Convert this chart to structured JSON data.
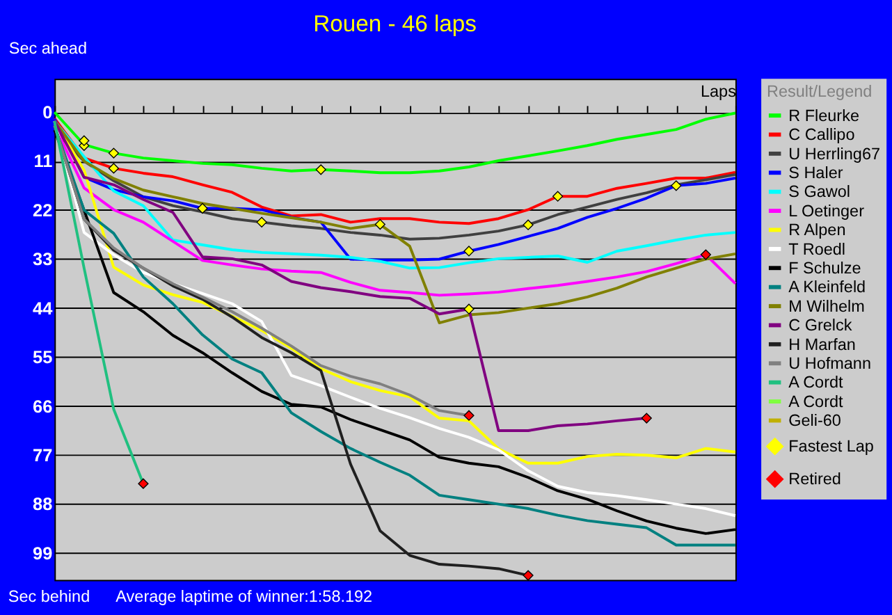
{
  "chart_data": {
    "type": "line",
    "title": "Rouen - 46 laps",
    "ylabel": "Sec ahead",
    "xlabel": "Laps",
    "legend_title": "Result/Legend",
    "annotations": [
      "Sec behind",
      "Average laptime of winner:1:58.192"
    ],
    "categories": [
      null,
      null,
      null,
      null,
      null,
      null,
      null,
      null,
      null,
      null,
      null,
      null,
      null,
      null,
      null,
      null,
      null,
      null,
      null,
      null,
      null,
      null,
      null,
      null
    ],
    "ylim": [
      105,
      -7.5
    ],
    "yticks": [
      0,
      11,
      22,
      33,
      44,
      55,
      66,
      77,
      88,
      99
    ],
    "grid": "y",
    "legend": "right",
    "series": [
      {
        "name": "R Fleurke",
        "color": "#00ff00",
        "values": [
          0,
          7.3,
          9.2,
          10.3,
          10.9,
          11.5,
          11.8,
          12.6,
          13.2,
          12.9,
          13.2,
          13.6,
          13.6,
          13.2,
          12.3,
          10.9,
          9.8,
          8.7,
          7.5,
          6.1,
          5,
          3.9,
          1.6,
          0.2
        ]
      },
      {
        "name": "C Callipo",
        "color": "#ff0000",
        "values": [
          1.4,
          10.3,
          12.6,
          13.7,
          14.5,
          16.3,
          18,
          21.3,
          23.3,
          23,
          24.7,
          23.9,
          23.9,
          24.7,
          25,
          23.9,
          21.9,
          18.9,
          18.9,
          17.1,
          16,
          14.8,
          14.8,
          13.5
        ]
      },
      {
        "name": "U Herrling67",
        "color": "#404040",
        "values": [
          4.1,
          11,
          15.4,
          19,
          21,
          22.4,
          23.9,
          24.7,
          25.5,
          26.1,
          27,
          27.6,
          28.5,
          28.3,
          27.6,
          26.7,
          25.3,
          23,
          21.3,
          19.6,
          18.1,
          16.3,
          15.2,
          14
        ]
      },
      {
        "name": "S Haler",
        "color": "#0000ff",
        "values": [
          1.5,
          14.6,
          17.4,
          19,
          19.9,
          21.6,
          21.6,
          21.9,
          23.6,
          24.7,
          33,
          33.2,
          33.2,
          33,
          31.2,
          29.7,
          27.9,
          26.1,
          23.6,
          21.6,
          19.3,
          16.5,
          16,
          14.8
        ]
      },
      {
        "name": "S Gawol",
        "color": "#00ffff",
        "values": [
          2,
          10,
          17.7,
          21,
          28.7,
          29.8,
          30.9,
          31.5,
          31.8,
          32.1,
          32.6,
          33.5,
          35,
          34.9,
          33.8,
          32.9,
          32.6,
          32.3,
          33.7,
          31.2,
          30,
          28.7,
          27.6,
          27
        ]
      },
      {
        "name": "L Oetinger",
        "color": "#ff00ff",
        "values": [
          3,
          17,
          21.9,
          24.7,
          29,
          33.3,
          34.3,
          35.2,
          35.7,
          36,
          38.2,
          40,
          40.5,
          41.1,
          40.8,
          40.4,
          39.6,
          38.9,
          38,
          37,
          35.8,
          34,
          32,
          38.5
        ]
      },
      {
        "name": "R Alpen",
        "color": "#ffff00",
        "values": [
          2,
          13,
          34.8,
          38.8,
          41,
          42.7,
          45.8,
          49,
          53,
          57.6,
          60.5,
          62.5,
          63.9,
          68.7,
          69.3,
          75.6,
          78.8,
          78.8,
          77.3,
          76.8,
          77,
          77.6,
          75.5,
          76.3
        ]
      },
      {
        "name": "T Roedl",
        "color": "#ffffff",
        "values": [
          2,
          27,
          32,
          36,
          38.5,
          40.7,
          43,
          47,
          59.1,
          61.4,
          64,
          66.5,
          68.6,
          71,
          73,
          75.8,
          80.5,
          84,
          85.4,
          86.1,
          87,
          88,
          89,
          90.6
        ]
      },
      {
        "name": "F Schulze",
        "color": "#000000",
        "values": [
          4,
          22,
          40.5,
          44.8,
          50.1,
          54,
          58.5,
          62.7,
          65.6,
          66.2,
          69,
          71.3,
          73.6,
          77.5,
          78.8,
          79.6,
          82,
          85,
          86.9,
          89.5,
          91.8,
          93.4,
          94.6,
          93.7
        ]
      },
      {
        "name": "A Kleinfeld",
        "color": "#008080",
        "values": [
          3,
          22,
          27.2,
          37,
          43,
          50,
          55.4,
          58.5,
          67.5,
          71.7,
          75.5,
          78.6,
          81.5,
          86,
          87,
          88,
          89,
          90.5,
          91.7,
          92.5,
          93.3,
          97.2,
          97.2,
          97.2
        ]
      },
      {
        "name": "M Wilhelm",
        "color": "#808000",
        "values": [
          2,
          11,
          14.9,
          17.5,
          19,
          20.5,
          21.6,
          22.7,
          23.7,
          24.7,
          26.1,
          25.2,
          30.1,
          47.3,
          45.5,
          45,
          44,
          43,
          41.5,
          39.5,
          37,
          35,
          33,
          31.8
        ]
      },
      {
        "name": "C Grelck",
        "color": "#800080",
        "values": [
          2,
          14.6,
          16.3,
          19.6,
          22.5,
          32.5,
          32.9,
          34.3,
          38,
          39.4,
          40.3,
          41.4,
          41.8,
          45.3,
          44.2,
          71.5,
          71.5,
          70.4,
          70,
          69.3,
          68.7,
          null,
          null,
          null
        ]
      },
      {
        "name": "H Marfan",
        "color": "#202020",
        "values": [
          3,
          24,
          31,
          35,
          39,
          42,
          46,
          50.6,
          54,
          58,
          79,
          94,
          99.5,
          101.5,
          101.9,
          102.5,
          104,
          null,
          null,
          null,
          null,
          null,
          null,
          null
        ]
      },
      {
        "name": "U Hofmann",
        "color": "#808080",
        "values": [
          3,
          24,
          30.5,
          35,
          38.5,
          41.5,
          44.8,
          48.5,
          52.5,
          56.9,
          59.3,
          61,
          63.5,
          67,
          68.1,
          null,
          null,
          null,
          null,
          null,
          null,
          null,
          null,
          null
        ]
      },
      {
        "name": "A Cordt",
        "color": "#20c080",
        "values": [
          2,
          35,
          66.7,
          83.4,
          null,
          null,
          null,
          null,
          null,
          null,
          null,
          null,
          null,
          null,
          null,
          null,
          null,
          null,
          null,
          null,
          null,
          null,
          null,
          null
        ]
      },
      {
        "name": "A Cordt",
        "color": "#80ff40",
        "values": [
          null,
          null,
          null,
          null,
          null,
          null,
          null,
          null,
          null,
          null,
          null,
          null,
          null,
          null,
          null,
          null,
          null,
          null,
          null,
          null,
          null,
          null,
          null,
          null
        ]
      },
      {
        "name": "  Geli-60",
        "color": "#c0b000",
        "values": [
          null,
          null,
          null,
          null,
          null,
          null,
          null,
          null,
          null,
          null,
          null,
          null,
          null,
          null,
          null,
          null,
          null,
          null,
          null,
          null,
          null,
          null,
          null,
          null
        ]
      },
      {
        "name": "Fastest Lap",
        "type": "scatter",
        "marker": "diamond",
        "color": "#ffff00",
        "values": [
          null,
          7.5,
          9.2,
          null,
          null,
          21.6,
          null,
          24.7,
          null,
          12.9,
          null,
          25.2,
          null,
          null,
          31.2,
          null,
          25.3,
          18.9,
          null,
          null,
          null,
          16.5,
          null,
          null
        ]
      },
      {
        "name": "Retired",
        "type": "scatter",
        "marker": "diamond",
        "color": "#ff0000",
        "values": [
          null,
          null,
          null,
          83.4,
          null,
          null,
          null,
          null,
          null,
          null,
          null,
          null,
          null,
          null,
          68.1,
          null,
          104,
          null,
          null,
          null,
          68.7,
          null,
          32,
          null
        ]
      },
      {
        "type": "scatter",
        "marker": "diamond",
        "color": "#ffff00",
        "values": [
          null,
          6.4,
          12.6,
          null,
          null,
          null,
          null,
          null,
          null,
          null,
          null,
          null,
          null,
          null,
          44.2,
          null,
          null,
          null,
          null,
          null,
          null,
          null,
          null,
          null
        ]
      }
    ]
  }
}
